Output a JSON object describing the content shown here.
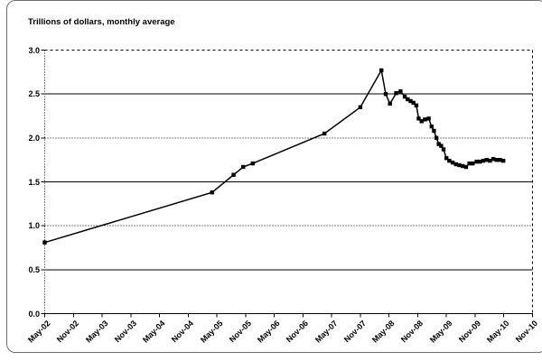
{
  "title": "Trillions of dollars, monthly average",
  "chart_data": {
    "type": "line",
    "title": "Trillions of dollars, monthly average",
    "xlabel": "",
    "ylabel": "Trillions of dollars",
    "ylim": [
      0.0,
      3.0
    ],
    "xlim_months": [
      0,
      102
    ],
    "y_tick_labels": [
      "0.0",
      "0.5",
      "1.0",
      "1.5",
      "2.0",
      "2.5",
      "3.0"
    ],
    "x_tick_labels": [
      "May-02",
      "Nov-02",
      "May-03",
      "Nov-03",
      "May-04",
      "Nov-04",
      "May-05",
      "Nov-05",
      "May-06",
      "Nov-06",
      "May-07",
      "Nov-07",
      "May-08",
      "Nov-08",
      "May-09",
      "Nov-09",
      "May-10",
      "Nov-10"
    ],
    "x_tick_months": [
      0,
      6,
      12,
      18,
      24,
      30,
      36,
      42,
      48,
      54,
      60,
      66,
      72,
      78,
      84,
      90,
      96,
      102
    ],
    "grid": "horizontal gridlines, alternating solid and dotted",
    "legend": "none",
    "line_color": "#000000",
    "marker": "filled black square",
    "series": [
      {
        "name": "monthly average value (trillions of dollars)",
        "points_format": "[months since May-2002, trillions of dollars]",
        "points": [
          [
            0,
            0.81
          ],
          [
            35,
            1.38
          ],
          [
            39.5,
            1.58
          ],
          [
            41.5,
            1.67
          ],
          [
            43.5,
            1.71
          ],
          [
            58.5,
            2.05
          ],
          [
            66,
            2.35
          ],
          [
            70.4,
            2.77
          ],
          [
            71.3,
            2.5
          ],
          [
            72.2,
            2.39
          ],
          [
            73.5,
            2.51
          ],
          [
            74.4,
            2.53
          ],
          [
            75.3,
            2.47
          ],
          [
            75.9,
            2.44
          ],
          [
            76.5,
            2.42
          ],
          [
            77.1,
            2.4
          ],
          [
            77.7,
            2.37
          ],
          [
            78.2,
            2.22
          ],
          [
            78.8,
            2.19
          ],
          [
            79.5,
            2.21
          ],
          [
            80.3,
            2.22
          ],
          [
            80.9,
            2.13
          ],
          [
            81.4,
            2.08
          ],
          [
            81.9,
            2.0
          ],
          [
            82.4,
            1.93
          ],
          [
            82.9,
            1.91
          ],
          [
            83.4,
            1.87
          ],
          [
            84.0,
            1.77
          ],
          [
            84.6,
            1.74
          ],
          [
            85.3,
            1.72
          ],
          [
            86.0,
            1.7
          ],
          [
            86.7,
            1.69
          ],
          [
            87.4,
            1.68
          ],
          [
            88.1,
            1.67
          ],
          [
            88.8,
            1.71
          ],
          [
            89.5,
            1.71
          ],
          [
            90.3,
            1.73
          ],
          [
            91.0,
            1.73
          ],
          [
            91.7,
            1.74
          ],
          [
            92.4,
            1.75
          ],
          [
            93.1,
            1.74
          ],
          [
            93.8,
            1.76
          ],
          [
            94.5,
            1.75
          ],
          [
            95.2,
            1.75
          ],
          [
            95.9,
            1.74
          ]
        ]
      }
    ]
  }
}
